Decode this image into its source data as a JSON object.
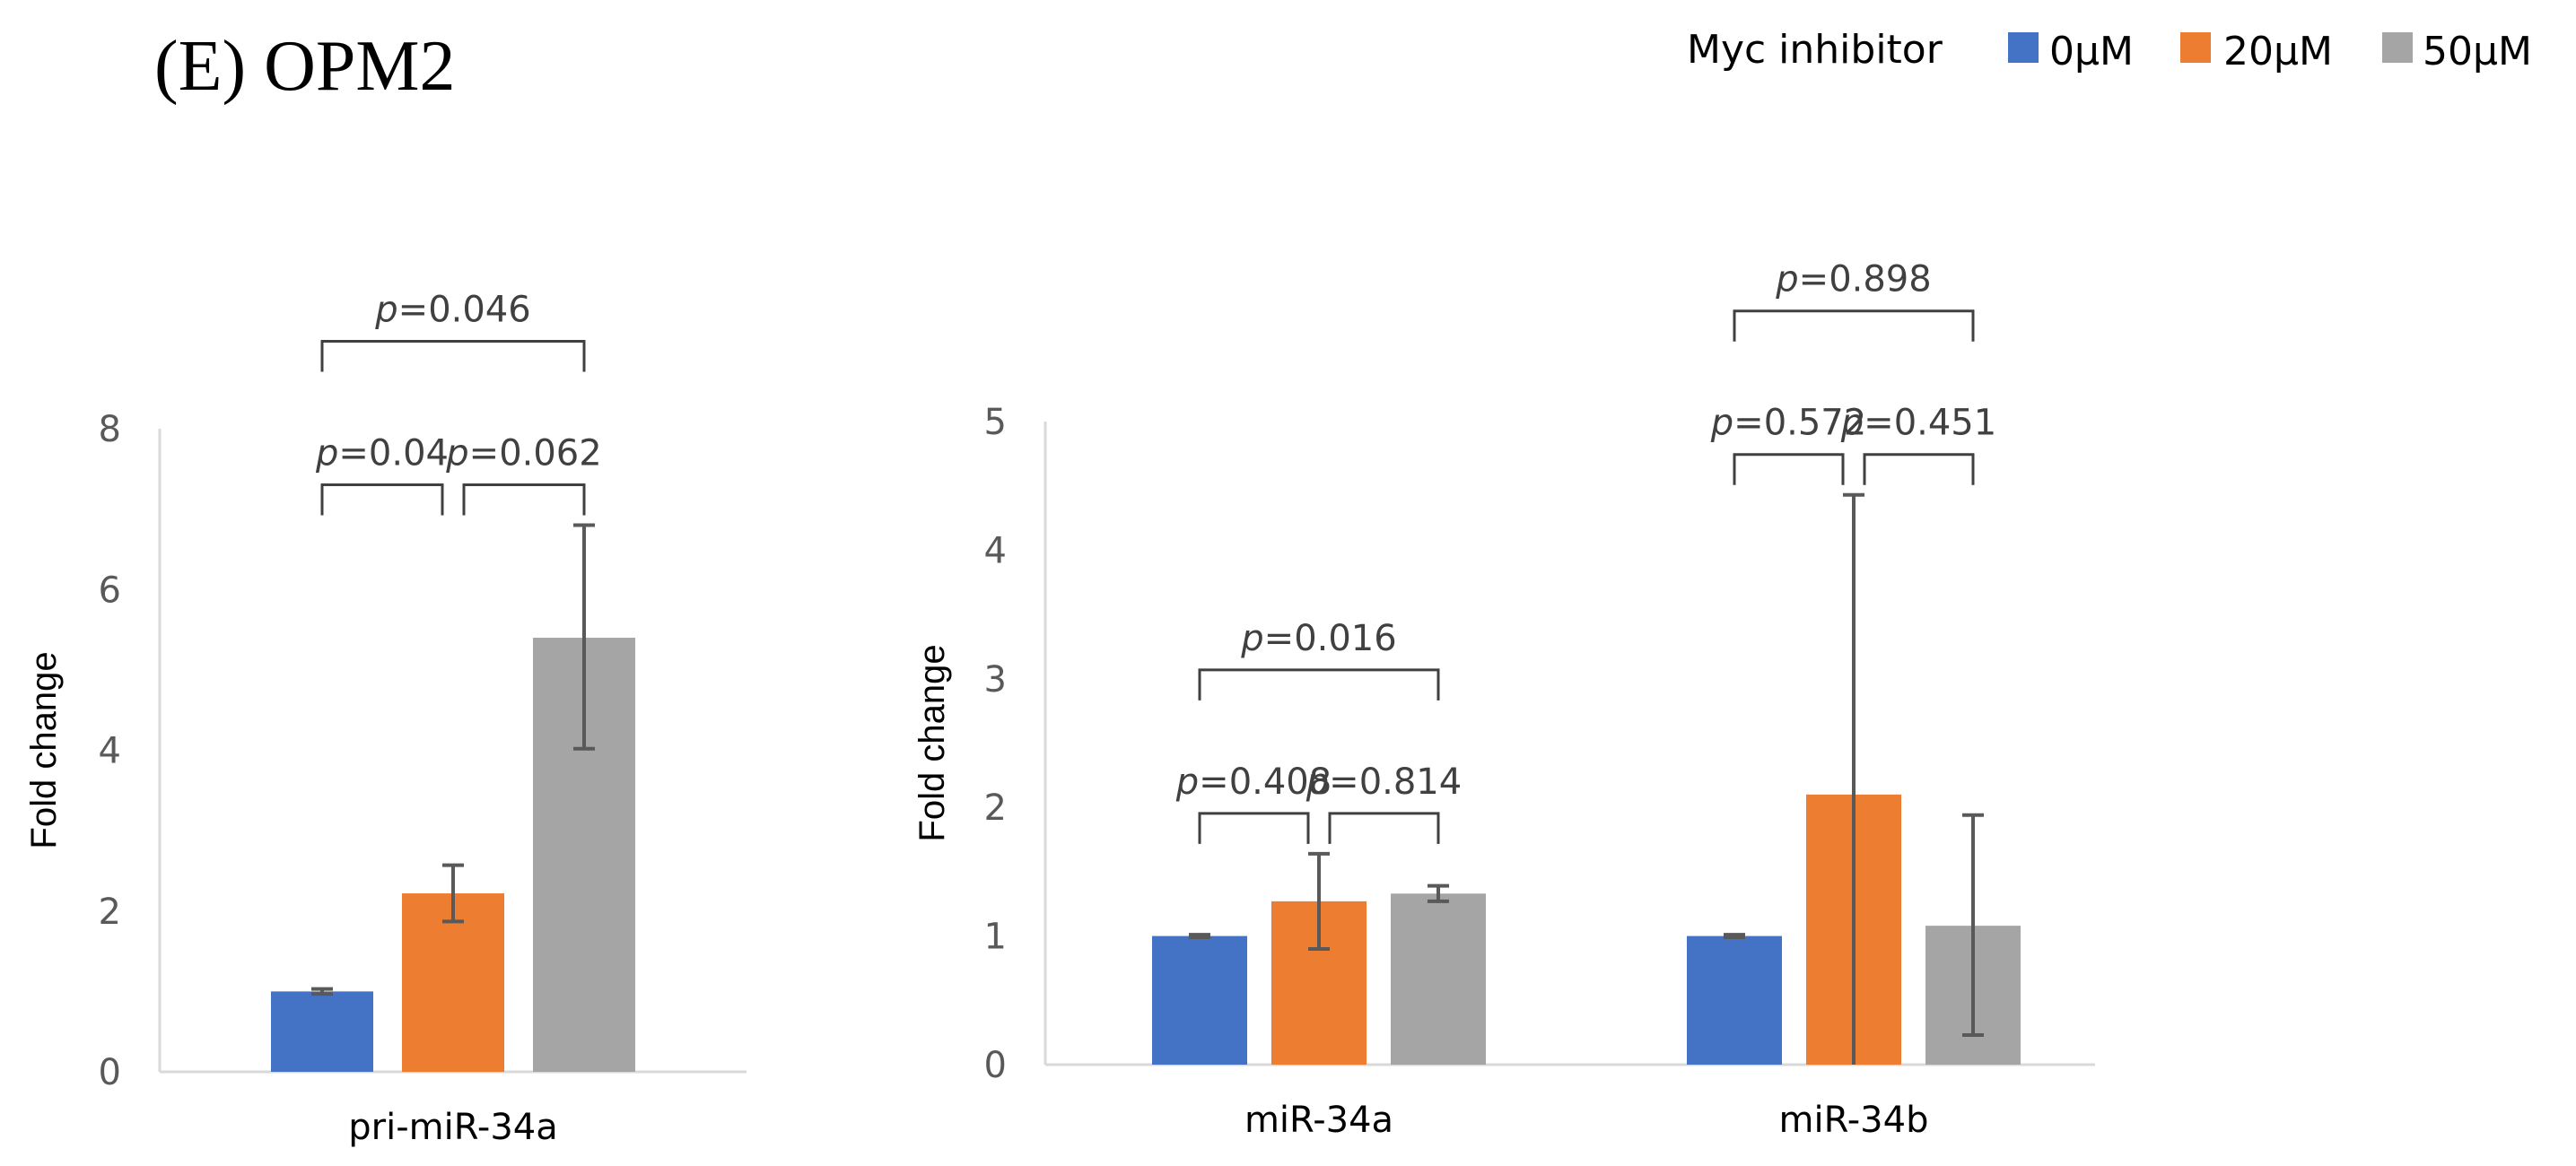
{
  "figure_title": "(E) OPM2",
  "legend": {
    "title": "Myc inhibitor",
    "entries": [
      {
        "label": "0μM",
        "color": "#4472C4"
      },
      {
        "label": "20μM",
        "color": "#ED7D31"
      },
      {
        "label": "50μM",
        "color": "#A5A5A5"
      }
    ]
  },
  "p_prefix": "p",
  "chart_data": [
    {
      "type": "bar",
      "ylabel": "Fold change",
      "ylim": [
        0,
        8
      ],
      "yticks": [
        0,
        2,
        4,
        6,
        8
      ],
      "categories": [
        "pri-miR-34a"
      ],
      "series": [
        {
          "name": "0μM",
          "values": [
            1.0
          ],
          "err_low": [
            0.03
          ],
          "err_high": [
            0.03
          ]
        },
        {
          "name": "20μM",
          "values": [
            2.22
          ],
          "err_low": [
            0.35
          ],
          "err_high": [
            0.35
          ]
        },
        {
          "name": "50μM",
          "values": [
            5.4
          ],
          "err_low": [
            1.38
          ],
          "err_high": [
            1.4
          ]
        }
      ],
      "comparisons": [
        {
          "category": 0,
          "from": 0,
          "to": 1,
          "label": "=0.04"
        },
        {
          "category": 0,
          "from": 1,
          "to": 2,
          "label": "=0.062"
        },
        {
          "category": 0,
          "from": 0,
          "to": 2,
          "label": "=0.046"
        }
      ]
    },
    {
      "type": "bar",
      "ylabel": "Fold change",
      "ylim": [
        0,
        5
      ],
      "yticks": [
        0,
        1,
        2,
        3,
        4,
        5
      ],
      "categories": [
        "miR-34a",
        "miR-34b"
      ],
      "series": [
        {
          "name": "0μM",
          "values": [
            1.0,
            1.0
          ],
          "err_low": [
            0.01,
            0.01
          ],
          "err_high": [
            0.01,
            0.01
          ]
        },
        {
          "name": "20μM",
          "values": [
            1.27,
            2.1
          ],
          "err_low": [
            0.37,
            2.1
          ],
          "err_high": [
            0.37,
            2.33
          ]
        },
        {
          "name": "50μM",
          "values": [
            1.33,
            1.08
          ],
          "err_low": [
            0.06,
            0.85
          ],
          "err_high": [
            0.06,
            0.86
          ]
        }
      ],
      "comparisons": [
        {
          "category": 0,
          "from": 0,
          "to": 1,
          "label": "=0.408"
        },
        {
          "category": 0,
          "from": 1,
          "to": 2,
          "label": "=0.814"
        },
        {
          "category": 0,
          "from": 0,
          "to": 2,
          "label": "=0.016"
        },
        {
          "category": 1,
          "from": 0,
          "to": 1,
          "label": "=0.572"
        },
        {
          "category": 1,
          "from": 1,
          "to": 2,
          "label": "=0.451"
        },
        {
          "category": 1,
          "from": 0,
          "to": 2,
          "label": "=0.898"
        }
      ]
    }
  ]
}
